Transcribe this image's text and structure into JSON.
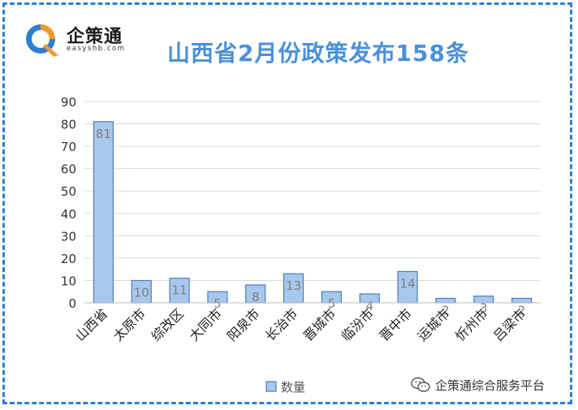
{
  "brand": {
    "name": "企策通",
    "site": "easyshb.com"
  },
  "watermark": {
    "text": "企策通综合服务平台",
    "icon": "wechat-icon"
  },
  "colors": {
    "frame": "#2f7fd1",
    "title": "#4a90d9",
    "bar_fill": "#a7c7ec",
    "bar_stroke": "#4a7fc0",
    "grid": "#d9d9d9",
    "label": "#7f7f7f"
  },
  "chart_data": {
    "type": "bar",
    "title": "山西省2月份政策发布158条",
    "categories": [
      "山西省",
      "太原市",
      "综改区",
      "大同市",
      "阳泉市",
      "长治市",
      "晋城市",
      "临汾市",
      "晋中市",
      "运城市",
      "忻州市",
      "吕梁市"
    ],
    "series": [
      {
        "name": "数量",
        "values": [
          81,
          10,
          11,
          5,
          8,
          13,
          5,
          4,
          14,
          2,
          3,
          2
        ]
      }
    ],
    "ylim": [
      0,
      90
    ],
    "yticks": [
      0,
      10,
      20,
      30,
      40,
      50,
      60,
      70,
      80,
      90
    ],
    "grid": true,
    "legend": "bottom"
  }
}
